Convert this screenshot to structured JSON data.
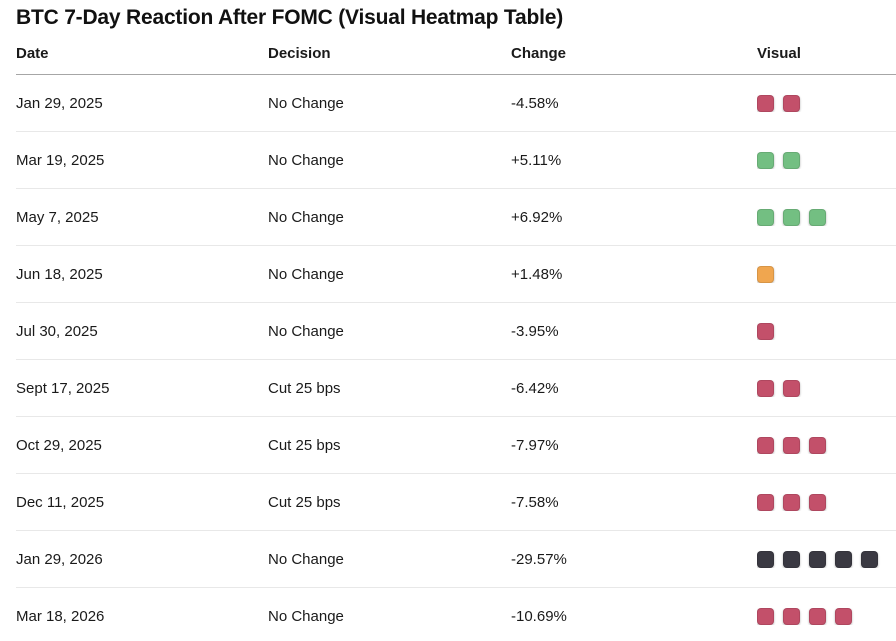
{
  "title": "BTC 7-Day Reaction After FOMC (Visual Heatmap Table)",
  "table": {
    "columns": [
      "Date",
      "Decision",
      "Change",
      "Visual"
    ],
    "rows": [
      {
        "date": "Jan 29, 2025",
        "decision": "No Change",
        "change": "-4.58%",
        "visual": {
          "count": 2,
          "color": "rose"
        }
      },
      {
        "date": "Mar 19, 2025",
        "decision": "No Change",
        "change": "+5.11%",
        "visual": {
          "count": 2,
          "color": "green"
        }
      },
      {
        "date": "May 7, 2025",
        "decision": "No Change",
        "change": "+6.92%",
        "visual": {
          "count": 3,
          "color": "green"
        }
      },
      {
        "date": "Jun 18, 2025",
        "decision": "No Change",
        "change": "+1.48%",
        "visual": {
          "count": 1,
          "color": "orange"
        }
      },
      {
        "date": "Jul 30, 2025",
        "decision": "No Change",
        "change": "-3.95%",
        "visual": {
          "count": 1,
          "color": "rose"
        }
      },
      {
        "date": "Sept 17, 2025",
        "decision": "Cut 25 bps",
        "change": "-6.42%",
        "visual": {
          "count": 2,
          "color": "rose"
        }
      },
      {
        "date": "Oct 29, 2025",
        "decision": "Cut 25 bps",
        "change": "-7.97%",
        "visual": {
          "count": 3,
          "color": "rose"
        }
      },
      {
        "date": "Dec 11, 2025",
        "decision": "Cut 25 bps",
        "change": "-7.58%",
        "visual": {
          "count": 3,
          "color": "rose"
        }
      },
      {
        "date": "Jan 29, 2026",
        "decision": "No Change",
        "change": "-29.57%",
        "visual": {
          "count": 5,
          "color": "dark"
        }
      },
      {
        "date": "Mar 18, 2026",
        "decision": "No Change",
        "change": "-10.69%",
        "visual": {
          "count": 4,
          "color": "rose"
        }
      }
    ]
  },
  "colors": {
    "rose": "#c3506a",
    "green": "#73bf82",
    "orange": "#f0a64f",
    "dark": "#3a3942",
    "text": "#1a1a1a",
    "header_rule": "#a6a6a6",
    "row_rule": "#e8e8e8"
  },
  "chart_data": {
    "type": "table",
    "title": "BTC 7-Day Reaction After FOMC (Visual Heatmap Table)",
    "columns": [
      "Date",
      "Decision",
      "Change",
      "Visual"
    ],
    "rows": [
      {
        "date": "Jan 29, 2025",
        "decision": "No Change",
        "change_pct": -4.58,
        "visual_blocks": 2,
        "visual_color": "rose"
      },
      {
        "date": "Mar 19, 2025",
        "decision": "No Change",
        "change_pct": 5.11,
        "visual_blocks": 2,
        "visual_color": "green"
      },
      {
        "date": "May 7, 2025",
        "decision": "No Change",
        "change_pct": 6.92,
        "visual_blocks": 3,
        "visual_color": "green"
      },
      {
        "date": "Jun 18, 2025",
        "decision": "No Change",
        "change_pct": 1.48,
        "visual_blocks": 1,
        "visual_color": "orange"
      },
      {
        "date": "Jul 30, 2025",
        "decision": "No Change",
        "change_pct": -3.95,
        "visual_blocks": 1,
        "visual_color": "rose"
      },
      {
        "date": "Sept 17, 2025",
        "decision": "Cut 25 bps",
        "change_pct": -6.42,
        "visual_blocks": 2,
        "visual_color": "rose"
      },
      {
        "date": "Oct 29, 2025",
        "decision": "Cut 25 bps",
        "change_pct": -7.97,
        "visual_blocks": 3,
        "visual_color": "rose"
      },
      {
        "date": "Dec 11, 2025",
        "decision": "Cut 25 bps",
        "change_pct": -7.58,
        "visual_blocks": 3,
        "visual_color": "rose"
      },
      {
        "date": "Jan 29, 2026",
        "decision": "No Change",
        "change_pct": -29.57,
        "visual_blocks": 5,
        "visual_color": "dark"
      },
      {
        "date": "Mar 18, 2026",
        "decision": "No Change",
        "change_pct": -10.69,
        "visual_blocks": 4,
        "visual_color": "rose"
      }
    ]
  }
}
